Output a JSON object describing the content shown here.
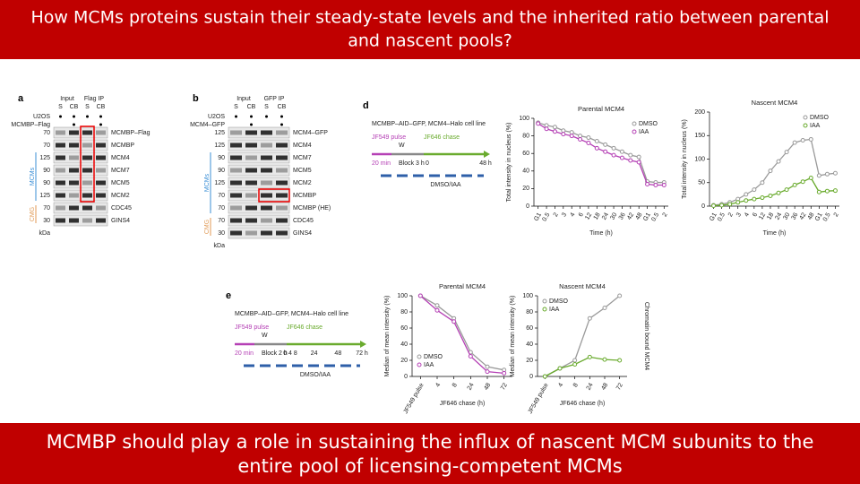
{
  "header": {
    "title_lines": [
      "How MCMs proteins sustain their steady-state levels and the inherited ratio between parental",
      "and nascent pools?"
    ]
  },
  "footer": {
    "text_lines": [
      "MCMBP should play a role in sustaining the influx of nascent MCM subunits to the",
      "entire pool of licensing-competent MCMs"
    ]
  },
  "figure": {
    "panel_a": {
      "letter": "a",
      "col_heads": [
        "Input",
        "Flag IP"
      ],
      "sub_heads": [
        "S",
        "CB",
        "S",
        "CB"
      ],
      "row_heads": [
        "U2OS",
        "MCMBP–Flag"
      ],
      "bands": [
        "MCMBP–Flag",
        "MCMBP",
        "MCM4",
        "MCM7",
        "MCM5",
        "MCM2",
        "CDC45",
        "GINS4"
      ],
      "kda": [
        "70",
        "70",
        "125",
        "90",
        "90",
        "125",
        "70",
        "30"
      ],
      "kda_unit": "kDa",
      "groups": [
        "MCMs",
        "CMG"
      ]
    },
    "panel_b": {
      "letter": "b",
      "col_heads": [
        "Input",
        "GFP IP"
      ],
      "sub_heads": [
        "S",
        "CB",
        "S",
        "CB"
      ],
      "row_heads": [
        "U2OS",
        "MCM4–GFP"
      ],
      "bands": [
        "MCM4–GFP",
        "MCM4",
        "MCM7",
        "MCM5",
        "MCM2",
        "MCMBP",
        "MCMBP (HE)",
        "CDC45",
        "GINS4"
      ],
      "kda": [
        "125",
        "125",
        "90",
        "90",
        "125",
        "70",
        "70",
        "70",
        "30"
      ],
      "kda_unit": "kDa",
      "groups": [
        "MCMs",
        "CMG"
      ]
    },
    "panel_d": {
      "letter": "d",
      "line": "MCMBP–AID–GFP, MCM4–Halo cell line",
      "pulse": "JF549 pulse",
      "wash": "W",
      "chase": "JF646 chase",
      "pulse_time": "20 min",
      "block": "Block 3 h",
      "times": [
        "0",
        "48 h"
      ],
      "treatment": "DMSO/IAA"
    },
    "panel_e": {
      "letter": "e",
      "line": "MCMBP–AID–GFP, MCM4–Halo cell line",
      "pulse": "JF549 pulse",
      "wash": "W",
      "chase": "JF646 chase",
      "pulse_time": "20 min",
      "block": "Block 2 h",
      "times": [
        "0 4 8",
        "24",
        "48",
        "72 h"
      ],
      "treatment": "DMSO/IAA"
    },
    "side_label": "Chromatin bound MCM4"
  },
  "chart_data": [
    {
      "type": "line",
      "title": "Parental MCM4",
      "ylabel": "Total intensity in nucleus (%)",
      "xlabel": "Time (h)",
      "categories": [
        "G1",
        "0.5",
        "2",
        "3",
        "4",
        "6",
        "12",
        "18",
        "24",
        "30",
        "36",
        "42",
        "48",
        "G1",
        "0.5",
        "2"
      ],
      "ylim": [
        0,
        100
      ],
      "yticks": [
        0,
        20,
        40,
        60,
        80,
        100
      ],
      "legend": "top-right",
      "series": [
        {
          "name": "DMSO",
          "color": "#9a9a9a",
          "values": [
            95,
            92,
            90,
            86,
            84,
            80,
            78,
            74,
            70,
            66,
            62,
            58,
            56,
            28,
            27,
            27
          ]
        },
        {
          "name": "IAA",
          "color": "#b540b5",
          "values": [
            94,
            88,
            85,
            82,
            80,
            76,
            72,
            66,
            62,
            58,
            55,
            52,
            50,
            25,
            24,
            24
          ]
        }
      ]
    },
    {
      "type": "line",
      "title": "Nascent MCM4",
      "ylabel": "Total intensity in nucleus (%)",
      "xlabel": "Time (h)",
      "categories": [
        "G1",
        "0.5",
        "2",
        "3",
        "4",
        "6",
        "12",
        "18",
        "24",
        "30",
        "36",
        "42",
        "48",
        "G1",
        "0.5",
        "2"
      ],
      "ylim": [
        0,
        200
      ],
      "yticks": [
        0,
        50,
        100,
        150,
        200
      ],
      "legend": "top-right",
      "series": [
        {
          "name": "DMSO",
          "color": "#9a9a9a",
          "values": [
            2,
            4,
            8,
            15,
            25,
            35,
            50,
            75,
            95,
            115,
            135,
            140,
            142,
            65,
            68,
            70
          ]
        },
        {
          "name": "IAA",
          "color": "#6aab2e",
          "values": [
            1,
            2,
            4,
            8,
            12,
            15,
            18,
            22,
            28,
            35,
            45,
            52,
            60,
            30,
            32,
            33
          ]
        }
      ]
    },
    {
      "type": "line",
      "title": "Parental MCM4",
      "ylabel": "Median of mean intensity (%)",
      "xlabel": "JF646 chase (h)",
      "categories": [
        "JF549 pulse",
        "4",
        "8",
        "24",
        "48",
        "72"
      ],
      "ylim": [
        0,
        100
      ],
      "yticks": [
        0,
        20,
        40,
        60,
        80,
        100
      ],
      "legend": "bottom-left",
      "series": [
        {
          "name": "DMSO",
          "color": "#9a9a9a",
          "values": [
            100,
            88,
            72,
            30,
            12,
            8
          ]
        },
        {
          "name": "IAA",
          "color": "#b540b5",
          "values": [
            100,
            82,
            68,
            25,
            6,
            4
          ]
        }
      ]
    },
    {
      "type": "line",
      "title": "Nascent MCM4",
      "ylabel": "Median of mean intensity (%)",
      "xlabel": "JF646 chase (h)",
      "categories": [
        "JF549 pulse",
        "4",
        "8",
        "24",
        "48",
        "72"
      ],
      "ylim": [
        0,
        100
      ],
      "yticks": [
        0,
        20,
        40,
        60,
        80,
        100
      ],
      "legend": "top-left",
      "series": [
        {
          "name": "DMSO",
          "color": "#9a9a9a",
          "values": [
            0,
            10,
            20,
            72,
            85,
            100
          ]
        },
        {
          "name": "IAA",
          "color": "#6aab2e",
          "values": [
            0,
            10,
            15,
            24,
            21,
            20
          ]
        }
      ]
    }
  ]
}
